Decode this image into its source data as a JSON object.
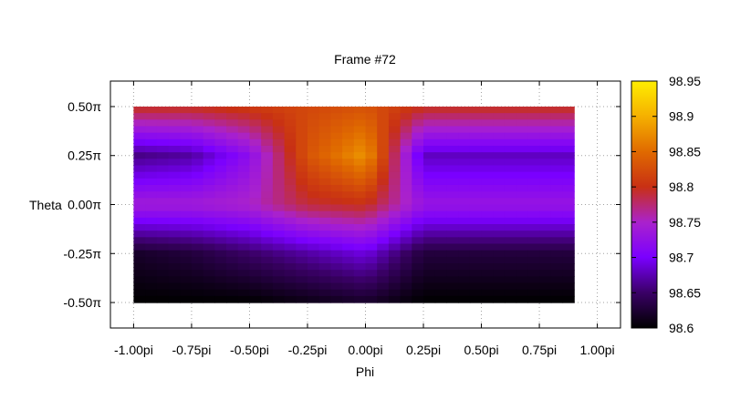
{
  "chart_data": {
    "type": "heatmap",
    "title": "Frame #72",
    "xlabel": "Phi",
    "ylabel": "Theta",
    "xlim": [
      -1.1,
      1.1
    ],
    "ylim": [
      -0.63,
      0.63
    ],
    "x_ticks": [
      {
        "value": -1.0,
        "label": "-1.00pi"
      },
      {
        "value": -0.75,
        "label": "-0.75pi"
      },
      {
        "value": -0.5,
        "label": "-0.50pi"
      },
      {
        "value": -0.25,
        "label": "-0.25pi"
      },
      {
        "value": 0.0,
        "label": "0.00pi"
      },
      {
        "value": 0.25,
        "label": "0.25pi"
      },
      {
        "value": 0.5,
        "label": "0.50pi"
      },
      {
        "value": 0.75,
        "label": "0.75pi"
      },
      {
        "value": 1.0,
        "label": "1.00pi"
      }
    ],
    "y_ticks": [
      {
        "value": 0.5,
        "label": "0.50π"
      },
      {
        "value": 0.25,
        "label": "0.25π"
      },
      {
        "value": 0.0,
        "label": "0.00π"
      },
      {
        "value": -0.25,
        "label": "-0.25π"
      },
      {
        "value": -0.5,
        "label": "-0.50π"
      }
    ],
    "data_extent": {
      "x": [
        -1.0,
        0.9
      ],
      "y": [
        -0.5,
        0.5
      ]
    },
    "grid": true,
    "colorbar": {
      "min": 98.6,
      "max": 98.95,
      "ticks": [
        98.6,
        98.65,
        98.7,
        98.75,
        98.8,
        98.85,
        98.9,
        98.95
      ],
      "tick_labels": [
        "98.6",
        "98.65",
        "98.7",
        "98.75",
        "98.8",
        "98.85",
        "98.9",
        "98.95"
      ],
      "colormap": [
        "#000000",
        "#3a0066",
        "#7a00ff",
        "#aa22cc",
        "#c83014",
        "#e06a00",
        "#f5b000",
        "#ffee00"
      ]
    },
    "grid_values": {
      "x": [
        -1.0,
        -0.75,
        -0.5,
        -0.25,
        0.0,
        0.25,
        0.5,
        0.75,
        0.9
      ],
      "y": [
        0.5,
        0.25,
        0.0,
        -0.25,
        -0.5
      ],
      "z": [
        [
          98.8,
          98.8,
          98.81,
          98.82,
          98.83,
          98.8,
          98.8,
          98.8,
          98.8
        ],
        [
          98.66,
          98.67,
          98.72,
          98.83,
          98.88,
          98.68,
          98.68,
          98.68,
          98.68
        ],
        [
          98.74,
          98.74,
          98.75,
          98.79,
          98.8,
          98.73,
          98.73,
          98.73,
          98.73
        ],
        [
          98.62,
          98.63,
          98.65,
          98.67,
          98.69,
          98.63,
          98.63,
          98.63,
          98.63
        ],
        [
          98.6,
          98.6,
          98.6,
          98.61,
          98.62,
          98.6,
          98.6,
          98.6,
          98.6
        ]
      ]
    }
  }
}
